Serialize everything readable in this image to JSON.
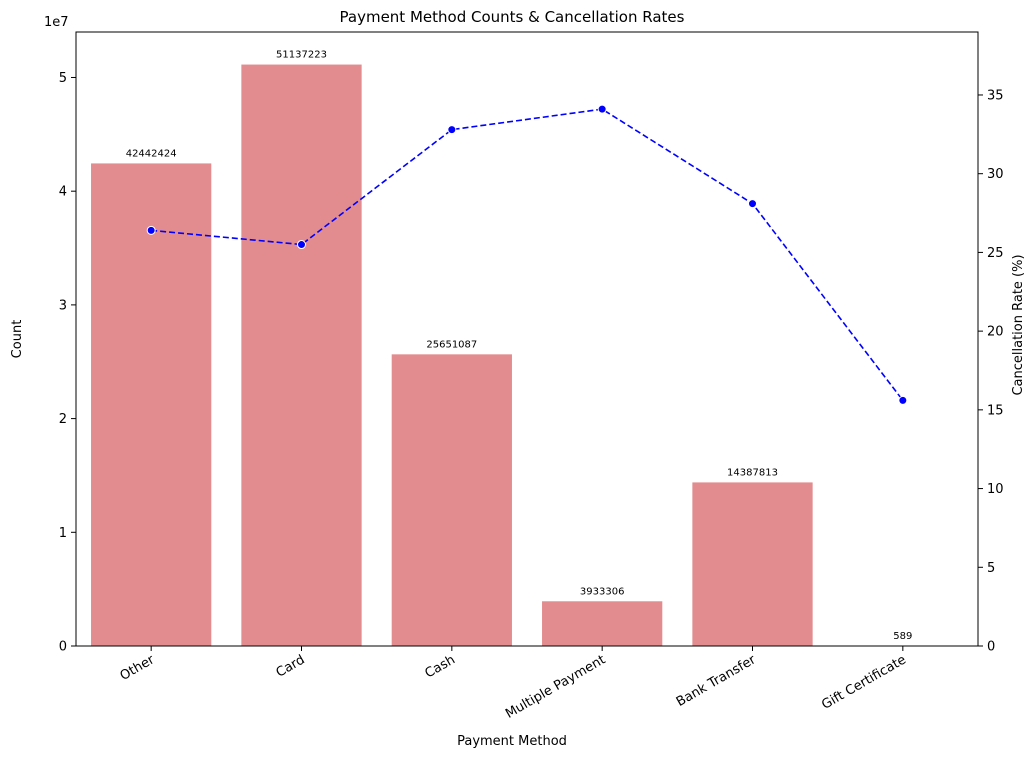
{
  "chart_data": {
    "type": "bar",
    "title": "Payment Method Counts & Cancellation Rates",
    "xlabel": "Payment Method",
    "ylabel": "Count",
    "y2label": "Cancellation Rate (%)",
    "y_offset_label": "1e7",
    "categories": [
      "Other",
      "Card",
      "Cash",
      "Multiple Payment",
      "Bank Transfer",
      "Gift Certificate"
    ],
    "ylim": [
      0,
      54000000
    ],
    "yticks": [
      0,
      1,
      2,
      3,
      4,
      5
    ],
    "y2lim": [
      0,
      39
    ],
    "y2ticks": [
      0,
      5,
      10,
      15,
      20,
      25,
      30,
      35
    ],
    "grid": false,
    "series": [
      {
        "type": "bar",
        "axis": "left",
        "color": "#e28c8f",
        "values": [
          42442424,
          51137223,
          25651087,
          3933306,
          14387813,
          589
        ],
        "labels": [
          "42442424",
          "51137223",
          "25651087",
          "3933306",
          "14387813",
          "589"
        ]
      },
      {
        "type": "line",
        "axis": "right",
        "color": "#0000ff",
        "style": "dashed",
        "marker": "circle",
        "values": [
          26.4,
          25.5,
          32.8,
          34.1,
          28.1,
          15.6
        ]
      }
    ]
  }
}
